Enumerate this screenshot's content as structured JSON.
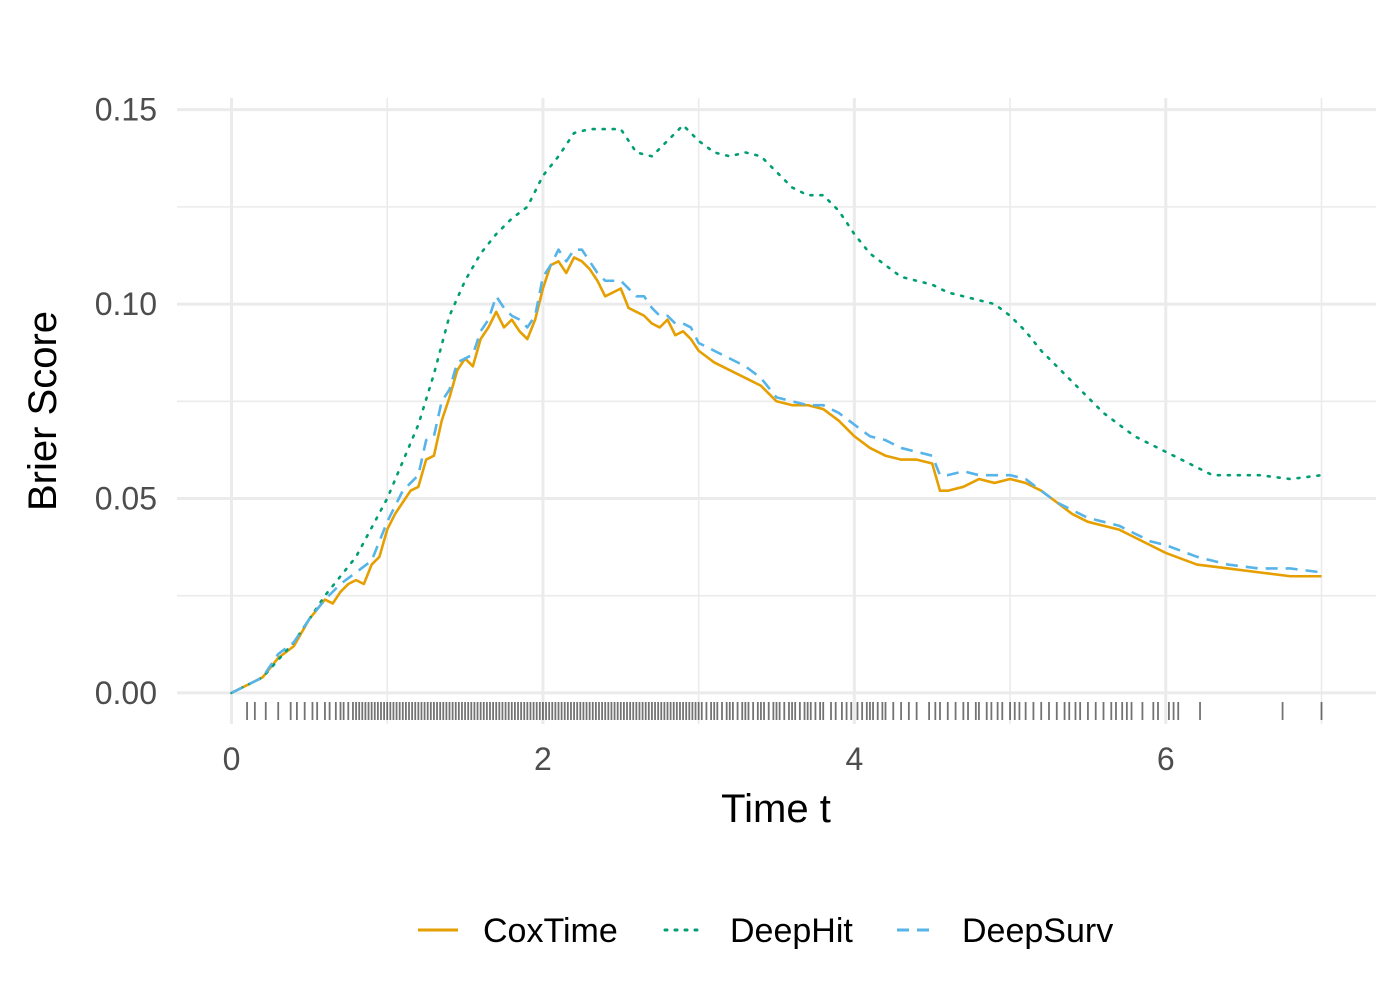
{
  "chart_data": {
    "type": "line",
    "xlabel": "Time t",
    "ylabel": "Brier Score",
    "xlim": [
      -0.35,
      7.35
    ],
    "ylim": [
      -0.008,
      0.153
    ],
    "x_ticks": [
      0,
      2,
      4,
      6
    ],
    "x_tick_labels": [
      "0",
      "2",
      "4",
      "6"
    ],
    "y_ticks": [
      0.0,
      0.05,
      0.1,
      0.15
    ],
    "y_tick_labels": [
      "0.00",
      "0.05",
      "0.10",
      "0.15"
    ],
    "grid": true,
    "legend_position": "bottom",
    "series": [
      {
        "name": "CoxTime",
        "color": "#E69F00",
        "dash": "solid",
        "x": [
          0,
          0.2,
          0.3,
          0.4,
          0.5,
          0.6,
          0.65,
          0.7,
          0.75,
          0.8,
          0.85,
          0.9,
          0.95,
          1.0,
          1.05,
          1.1,
          1.15,
          1.2,
          1.25,
          1.3,
          1.35,
          1.4,
          1.45,
          1.5,
          1.55,
          1.6,
          1.65,
          1.7,
          1.75,
          1.8,
          1.85,
          1.9,
          1.95,
          2.0,
          2.05,
          2.1,
          2.15,
          2.2,
          2.25,
          2.3,
          2.35,
          2.4,
          2.45,
          2.5,
          2.55,
          2.6,
          2.65,
          2.7,
          2.75,
          2.8,
          2.85,
          2.9,
          2.95,
          3.0,
          3.1,
          3.2,
          3.3,
          3.4,
          3.5,
          3.6,
          3.7,
          3.8,
          3.9,
          4.0,
          4.1,
          4.2,
          4.3,
          4.4,
          4.5,
          4.55,
          4.6,
          4.7,
          4.8,
          4.9,
          5.0,
          5.1,
          5.2,
          5.3,
          5.4,
          5.5,
          5.6,
          5.7,
          5.8,
          5.9,
          6.0,
          6.2,
          6.4,
          6.6,
          6.8,
          7.0
        ],
        "y": [
          0.0,
          0.004,
          0.009,
          0.012,
          0.019,
          0.024,
          0.023,
          0.026,
          0.028,
          0.029,
          0.028,
          0.033,
          0.035,
          0.042,
          0.046,
          0.049,
          0.052,
          0.053,
          0.06,
          0.061,
          0.07,
          0.076,
          0.083,
          0.086,
          0.084,
          0.091,
          0.094,
          0.098,
          0.094,
          0.096,
          0.093,
          0.091,
          0.096,
          0.104,
          0.11,
          0.111,
          0.108,
          0.112,
          0.111,
          0.109,
          0.106,
          0.102,
          0.103,
          0.104,
          0.099,
          0.098,
          0.097,
          0.095,
          0.094,
          0.096,
          0.092,
          0.093,
          0.091,
          0.088,
          0.085,
          0.083,
          0.081,
          0.079,
          0.075,
          0.074,
          0.074,
          0.073,
          0.07,
          0.066,
          0.063,
          0.061,
          0.06,
          0.06,
          0.059,
          0.052,
          0.052,
          0.053,
          0.055,
          0.054,
          0.055,
          0.054,
          0.052,
          0.049,
          0.046,
          0.044,
          0.043,
          0.042,
          0.04,
          0.038,
          0.036,
          0.033,
          0.032,
          0.031,
          0.03,
          0.03
        ]
      },
      {
        "name": "DeepHit",
        "color": "#009E73",
        "dash": "dotted",
        "x": [
          0,
          0.2,
          0.4,
          0.6,
          0.8,
          1.0,
          1.2,
          1.3,
          1.4,
          1.5,
          1.6,
          1.7,
          1.8,
          1.9,
          2.0,
          2.1,
          2.2,
          2.3,
          2.4,
          2.5,
          2.6,
          2.7,
          2.8,
          2.9,
          3.0,
          3.1,
          3.2,
          3.3,
          3.4,
          3.5,
          3.6,
          3.7,
          3.8,
          3.9,
          4.0,
          4.1,
          4.2,
          4.3,
          4.4,
          4.5,
          4.6,
          4.7,
          4.8,
          4.9,
          5.0,
          5.1,
          5.2,
          5.3,
          5.4,
          5.5,
          5.6,
          5.7,
          5.8,
          5.9,
          6.0,
          6.1,
          6.2,
          6.3,
          6.4,
          6.6,
          6.8,
          7.0
        ],
        "y": [
          0.0,
          0.004,
          0.013,
          0.025,
          0.035,
          0.05,
          0.069,
          0.082,
          0.097,
          0.106,
          0.113,
          0.118,
          0.122,
          0.125,
          0.133,
          0.138,
          0.144,
          0.145,
          0.145,
          0.145,
          0.139,
          0.138,
          0.142,
          0.146,
          0.142,
          0.139,
          0.138,
          0.139,
          0.138,
          0.134,
          0.13,
          0.128,
          0.128,
          0.124,
          0.118,
          0.113,
          0.11,
          0.107,
          0.106,
          0.105,
          0.103,
          0.102,
          0.101,
          0.1,
          0.097,
          0.093,
          0.088,
          0.084,
          0.08,
          0.076,
          0.072,
          0.069,
          0.066,
          0.064,
          0.062,
          0.06,
          0.058,
          0.056,
          0.056,
          0.056,
          0.055,
          0.056
        ]
      },
      {
        "name": "DeepSurv",
        "color": "#56B4E9",
        "dash": "dashed",
        "x": [
          0,
          0.2,
          0.3,
          0.4,
          0.5,
          0.6,
          0.7,
          0.8,
          0.9,
          1.0,
          1.1,
          1.2,
          1.25,
          1.3,
          1.35,
          1.4,
          1.45,
          1.5,
          1.55,
          1.6,
          1.65,
          1.7,
          1.75,
          1.8,
          1.85,
          1.9,
          1.95,
          2.0,
          2.05,
          2.1,
          2.15,
          2.2,
          2.25,
          2.3,
          2.35,
          2.4,
          2.45,
          2.5,
          2.55,
          2.6,
          2.65,
          2.7,
          2.75,
          2.8,
          2.85,
          2.9,
          2.95,
          3.0,
          3.1,
          3.2,
          3.3,
          3.4,
          3.5,
          3.6,
          3.7,
          3.8,
          3.9,
          4.0,
          4.1,
          4.2,
          4.3,
          4.4,
          4.5,
          4.55,
          4.6,
          4.7,
          4.8,
          4.9,
          5.0,
          5.1,
          5.2,
          5.3,
          5.4,
          5.5,
          5.6,
          5.7,
          5.8,
          5.9,
          6.0,
          6.2,
          6.4,
          6.6,
          6.8,
          7.0
        ],
        "y": [
          0.0,
          0.004,
          0.01,
          0.013,
          0.019,
          0.024,
          0.028,
          0.031,
          0.034,
          0.044,
          0.052,
          0.056,
          0.065,
          0.066,
          0.075,
          0.078,
          0.085,
          0.086,
          0.087,
          0.093,
          0.096,
          0.102,
          0.099,
          0.097,
          0.096,
          0.094,
          0.097,
          0.107,
          0.11,
          0.114,
          0.111,
          0.114,
          0.114,
          0.111,
          0.108,
          0.106,
          0.106,
          0.106,
          0.104,
          0.102,
          0.102,
          0.099,
          0.097,
          0.097,
          0.095,
          0.095,
          0.094,
          0.09,
          0.088,
          0.086,
          0.084,
          0.081,
          0.076,
          0.075,
          0.074,
          0.074,
          0.072,
          0.069,
          0.066,
          0.065,
          0.063,
          0.062,
          0.061,
          0.056,
          0.056,
          0.057,
          0.056,
          0.056,
          0.056,
          0.055,
          0.052,
          0.049,
          0.047,
          0.045,
          0.044,
          0.043,
          0.041,
          0.039,
          0.038,
          0.035,
          0.033,
          0.032,
          0.032,
          0.031
        ]
      }
    ],
    "rug": {
      "color": "#000000",
      "x": [
        0.1,
        0.15,
        0.22,
        0.3,
        0.38,
        0.42,
        0.47,
        0.52,
        0.55,
        0.6,
        0.63,
        0.67,
        0.7,
        0.72,
        0.75,
        0.78,
        0.8,
        0.82,
        0.84,
        0.86,
        0.88,
        0.9,
        0.92,
        0.94,
        0.96,
        0.98,
        1.0,
        1.02,
        1.04,
        1.06,
        1.08,
        1.1,
        1.12,
        1.14,
        1.16,
        1.18,
        1.2,
        1.22,
        1.24,
        1.26,
        1.28,
        1.3,
        1.32,
        1.34,
        1.36,
        1.38,
        1.4,
        1.42,
        1.44,
        1.46,
        1.48,
        1.5,
        1.52,
        1.54,
        1.56,
        1.58,
        1.6,
        1.62,
        1.64,
        1.66,
        1.68,
        1.7,
        1.72,
        1.74,
        1.76,
        1.78,
        1.8,
        1.82,
        1.84,
        1.86,
        1.88,
        1.9,
        1.92,
        1.94,
        1.96,
        1.98,
        2.0,
        2.02,
        2.04,
        2.06,
        2.08,
        2.1,
        2.12,
        2.14,
        2.16,
        2.18,
        2.2,
        2.22,
        2.24,
        2.26,
        2.28,
        2.3,
        2.32,
        2.34,
        2.36,
        2.38,
        2.4,
        2.42,
        2.44,
        2.46,
        2.48,
        2.5,
        2.52,
        2.54,
        2.56,
        2.58,
        2.6,
        2.62,
        2.64,
        2.66,
        2.68,
        2.7,
        2.72,
        2.74,
        2.76,
        2.78,
        2.8,
        2.82,
        2.84,
        2.86,
        2.88,
        2.9,
        2.92,
        2.94,
        2.96,
        2.98,
        3.0,
        3.02,
        3.05,
        3.08,
        3.1,
        3.12,
        3.15,
        3.18,
        3.2,
        3.22,
        3.25,
        3.28,
        3.3,
        3.32,
        3.35,
        3.38,
        3.4,
        3.42,
        3.45,
        3.48,
        3.5,
        3.52,
        3.55,
        3.58,
        3.6,
        3.62,
        3.65,
        3.68,
        3.7,
        3.72,
        3.75,
        3.78,
        3.8,
        3.85,
        3.88,
        3.92,
        3.95,
        3.98,
        4.02,
        4.05,
        4.08,
        4.1,
        4.12,
        4.15,
        4.18,
        4.2,
        4.25,
        4.3,
        4.35,
        4.4,
        4.48,
        4.52,
        4.55,
        4.6,
        4.65,
        4.7,
        4.73,
        4.78,
        4.8,
        4.85,
        4.88,
        4.92,
        4.95,
        5.0,
        5.03,
        5.06,
        5.1,
        5.15,
        5.2,
        5.25,
        5.3,
        5.35,
        5.38,
        5.42,
        5.45,
        5.5,
        5.55,
        5.6,
        5.65,
        5.68,
        5.72,
        5.75,
        5.78,
        5.85,
        5.92,
        5.95,
        6.02,
        6.05,
        6.08,
        6.22,
        6.75,
        7.0
      ]
    }
  }
}
